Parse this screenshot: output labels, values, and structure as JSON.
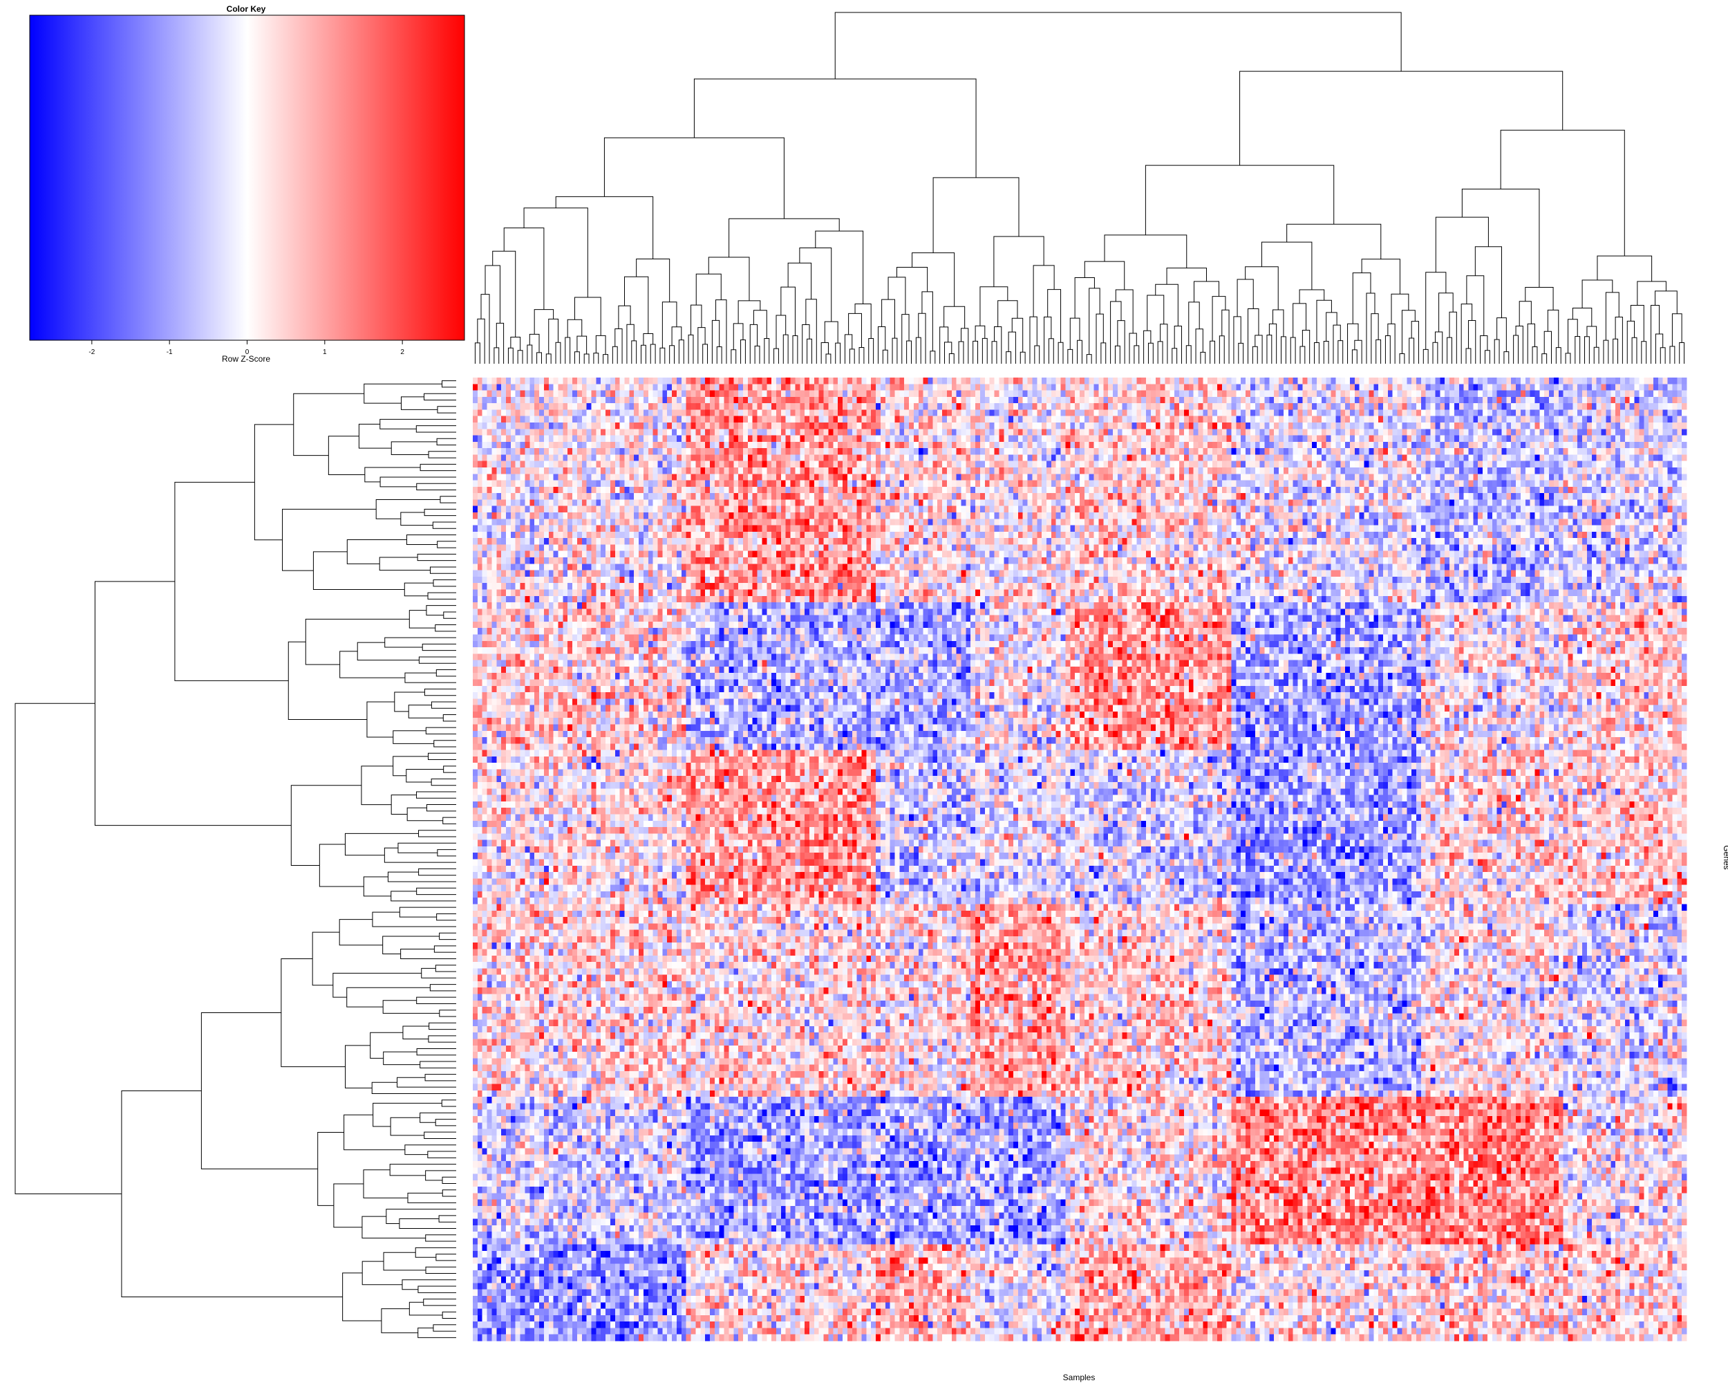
{
  "chart_data": {
    "type": "heatmap",
    "title": "",
    "xlabel": "Samples",
    "ylabel": "Genes",
    "n_rows": 150,
    "n_cols": 256,
    "row_dendrogram": true,
    "col_dendrogram": true,
    "cell_values": "row z-scores, approximately -2.8 to 2.8, blue-white-red scale",
    "color_key": {
      "title": "Color Key",
      "label": "Row Z-Score",
      "ticks": [
        "-2",
        "-1",
        "0",
        "1",
        "2"
      ],
      "tick_values": [
        -2,
        -1,
        0,
        1,
        2
      ],
      "range": [
        -2.8,
        2.8
      ],
      "low_color": "#0000ff",
      "mid_color": "#ffffff",
      "high_color": "#ff0000"
    }
  }
}
